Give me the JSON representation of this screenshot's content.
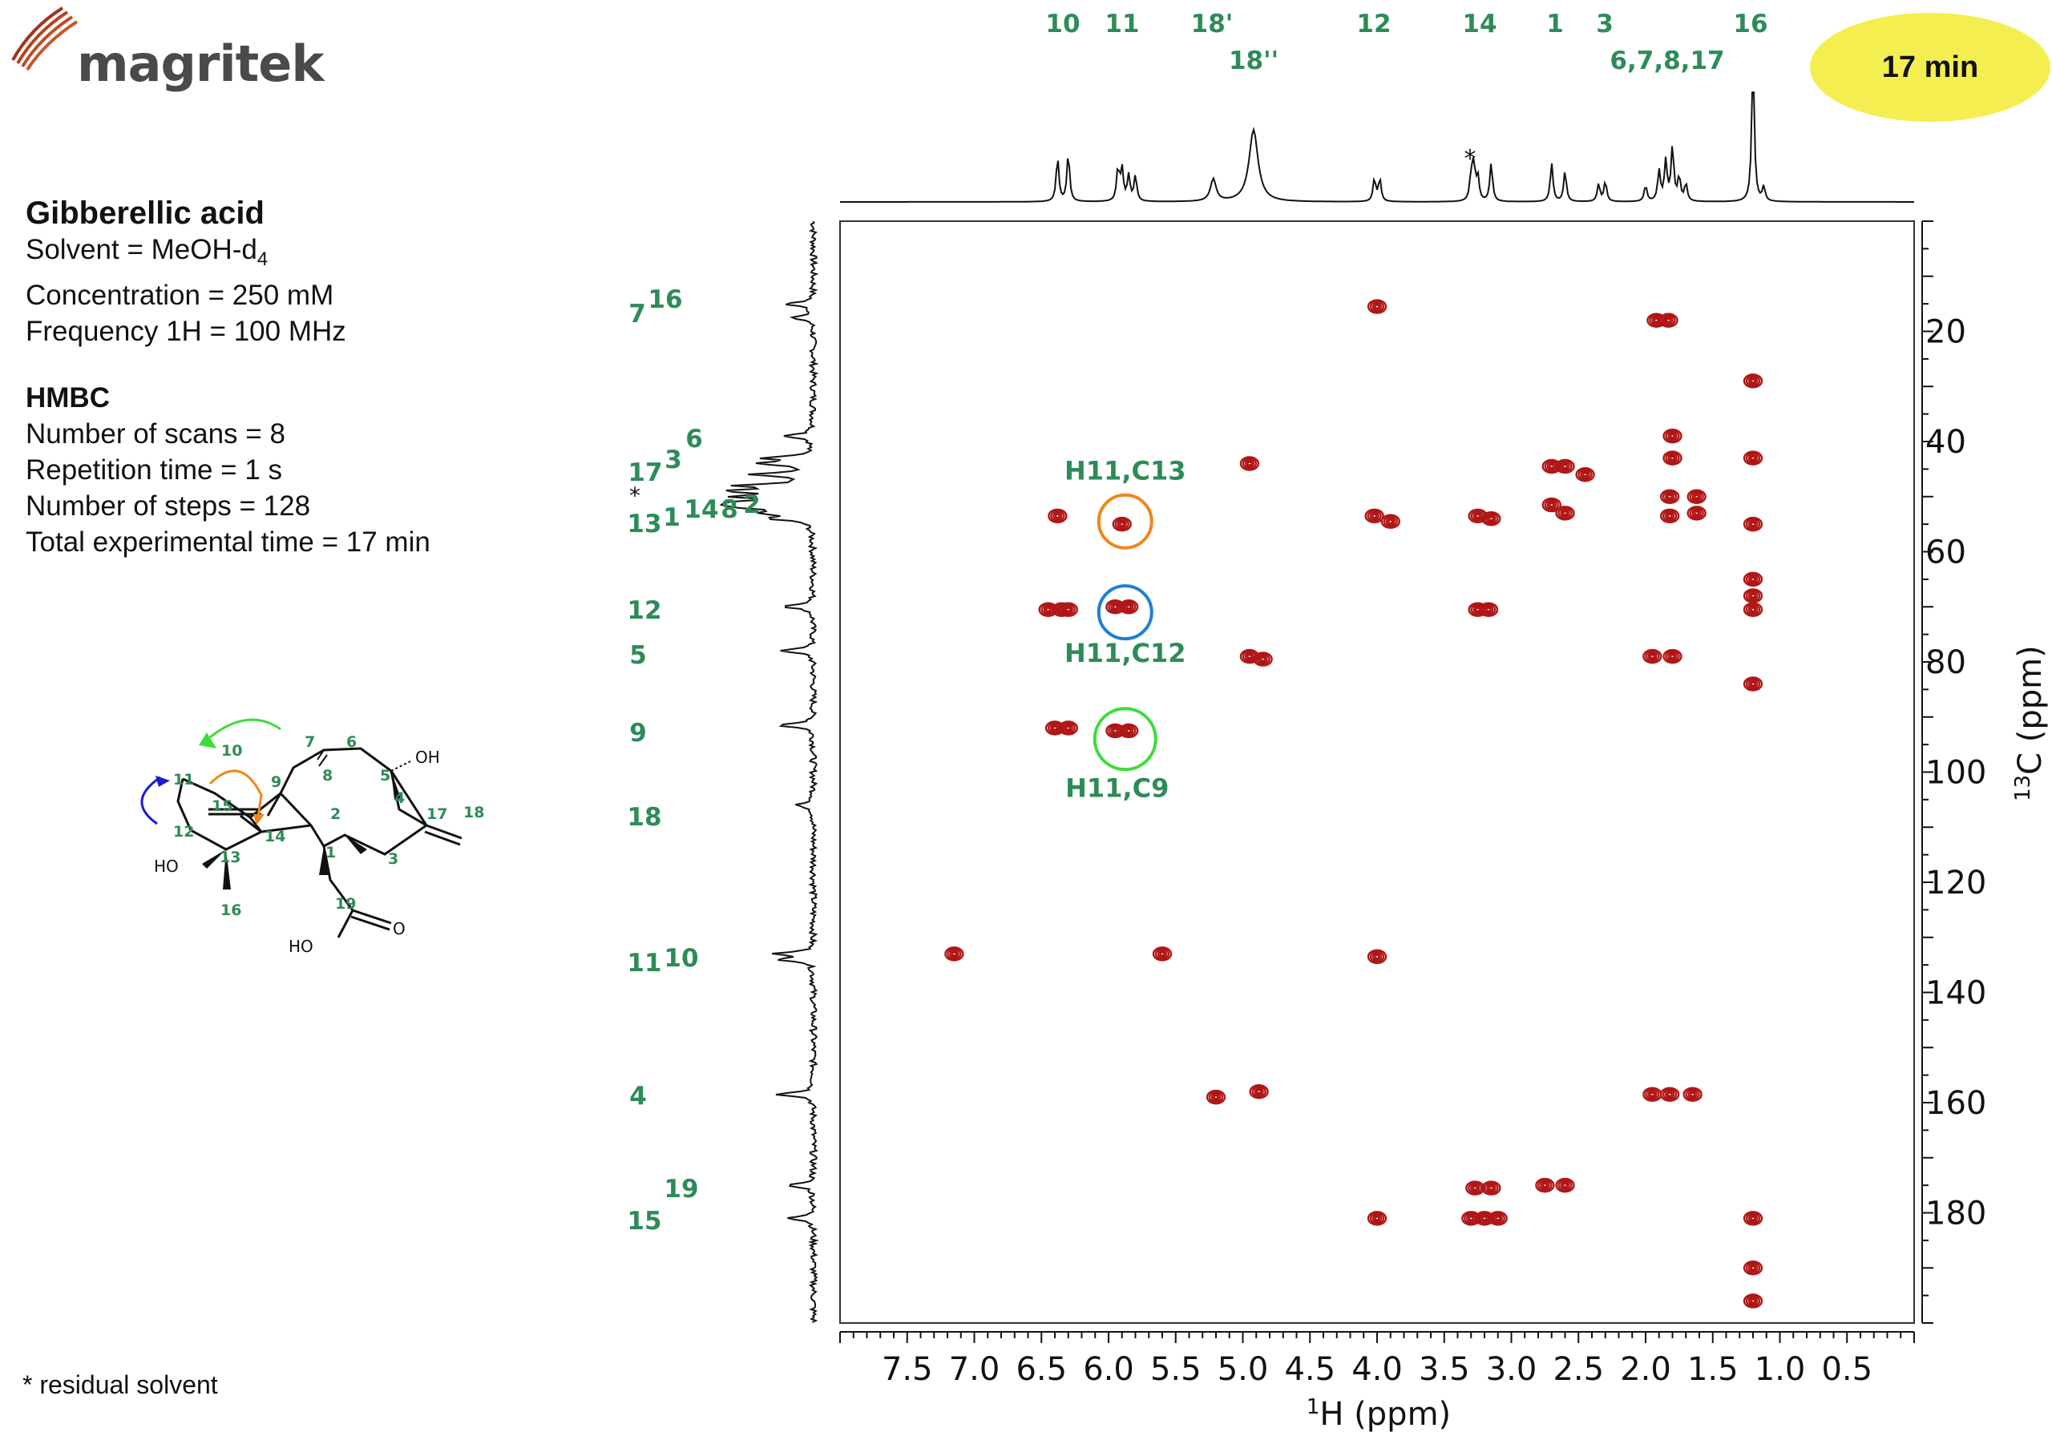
{
  "logo": {
    "text": "magritek"
  },
  "info": {
    "title": "Gibberellic acid",
    "solvent_prefix": "Solvent = MeOH-d",
    "solvent_sub": "4",
    "concentration": "Concentration = 250 mM",
    "frequency": "Frequency 1H = 100 MHz",
    "section": "HMBC",
    "scans": "Number of scans = 8",
    "repetition": "Repetition time = 1 s",
    "steps": "Number of steps = 128",
    "total_time": "Total experimental time =  17 min"
  },
  "footnote": "* residual solvent",
  "time_badge": "17 min",
  "structure_labels": {
    "oh": "OH",
    "ho1": "HO",
    "ho2": "HO",
    "o": "O"
  },
  "colors": {
    "contour": "#b01616",
    "label_green": "#2e8b57",
    "badge": "#f4ee50",
    "circle_orange": "#f0861c",
    "circle_blue": "#1e7fd6",
    "circle_green": "#3ddc3d",
    "arrow_blue": "#1a1ad6"
  },
  "chart_data": {
    "type": "heatmap",
    "subtype": "2D NMR HMBC contour",
    "xlabel_sup": "1",
    "xlabel": "H (ppm)",
    "ylabel_sup": "13",
    "ylabel": "C (ppm)",
    "xlim": [
      8.0,
      0.0
    ],
    "ylim": [
      0,
      200
    ],
    "x_ticks": [
      "7.5",
      "7.0",
      "6.5",
      "6.0",
      "5.5",
      "5.0",
      "4.5",
      "4.0",
      "3.5",
      "3.0",
      "2.5",
      "2.0",
      "1.5",
      "1.0",
      "0.5"
    ],
    "y_ticks": [
      "20",
      "40",
      "60",
      "80",
      "100",
      "120",
      "140",
      "160",
      "180"
    ],
    "h_assignments": [
      {
        "label": "10",
        "ppm": 6.35
      },
      {
        "label": "11",
        "ppm": 5.92
      },
      {
        "label": "18'",
        "ppm": 5.22
      },
      {
        "label": "18''",
        "ppm": 4.9
      },
      {
        "label": "12",
        "ppm": 4.0
      },
      {
        "label": "14",
        "ppm": 3.22
      },
      {
        "label": "1",
        "ppm": 2.65
      },
      {
        "label": "3",
        "ppm": 2.3
      },
      {
        "label": "6,7,8,17",
        "ppm": 1.75
      },
      {
        "label": "16",
        "ppm": 1.2
      }
    ],
    "c_assignments": [
      {
        "label": "7",
        "ppm": 17.5
      },
      {
        "label": "16",
        "ppm": 15.0
      },
      {
        "label": "6",
        "ppm": 39.0
      },
      {
        "label": "17",
        "ppm": 46.0
      },
      {
        "label": "3",
        "ppm": 44.0
      },
      {
        "label": "*",
        "ppm": 49.0
      },
      {
        "label": "13",
        "ppm": 54.0
      },
      {
        "label": "1",
        "ppm": 53.0
      },
      {
        "label": "14",
        "ppm": 51.5
      },
      {
        "label": "8",
        "ppm": 51.5
      },
      {
        "label": "2",
        "ppm": 51.0
      },
      {
        "label": "12",
        "ppm": 70.0
      },
      {
        "label": "5",
        "ppm": 78.0
      },
      {
        "label": "9",
        "ppm": 91.5
      },
      {
        "label": "18",
        "ppm": 106.0
      },
      {
        "label": "11",
        "ppm": 134.0
      },
      {
        "label": "10",
        "ppm": 133.0
      },
      {
        "label": "4",
        "ppm": 158.5
      },
      {
        "label": "19",
        "ppm": 175.0
      },
      {
        "label": "15",
        "ppm": 181.0
      }
    ],
    "annotations": [
      {
        "label": "H11,C13",
        "h": 5.9,
        "c": 54.5,
        "color": "orange"
      },
      {
        "label": "H11,C12",
        "h": 5.9,
        "c": 71.0,
        "color": "blue"
      },
      {
        "label": "H11,C9",
        "h": 5.9,
        "c": 94.0,
        "color": "green"
      }
    ],
    "cross_peaks": [
      {
        "h": 4.0,
        "c": 15.5
      },
      {
        "h": 1.92,
        "c": 18.0
      },
      {
        "h": 1.83,
        "c": 18.0
      },
      {
        "h": 1.2,
        "c": 29.0
      },
      {
        "h": 1.8,
        "c": 39.0
      },
      {
        "h": 1.8,
        "c": 43.0
      },
      {
        "h": 1.2,
        "c": 43.0
      },
      {
        "h": 4.95,
        "c": 44.0
      },
      {
        "h": 2.7,
        "c": 44.5
      },
      {
        "h": 2.6,
        "c": 44.5
      },
      {
        "h": 2.45,
        "c": 46.0
      },
      {
        "h": 1.82,
        "c": 50.0
      },
      {
        "h": 1.62,
        "c": 50.0
      },
      {
        "h": 1.62,
        "c": 53.0
      },
      {
        "h": 2.7,
        "c": 51.5
      },
      {
        "h": 2.6,
        "c": 53.0
      },
      {
        "h": 3.25,
        "c": 53.5
      },
      {
        "h": 3.15,
        "c": 54.0
      },
      {
        "h": 6.38,
        "c": 53.5
      },
      {
        "h": 5.9,
        "c": 55.0
      },
      {
        "h": 4.02,
        "c": 53.5
      },
      {
        "h": 3.9,
        "c": 54.5
      },
      {
        "h": 1.82,
        "c": 53.5
      },
      {
        "h": 1.2,
        "c": 55.0
      },
      {
        "h": 1.2,
        "c": 65.0
      },
      {
        "h": 1.2,
        "c": 68.0
      },
      {
        "h": 6.45,
        "c": 70.5
      },
      {
        "h": 6.35,
        "c": 70.5
      },
      {
        "h": 6.3,
        "c": 70.5
      },
      {
        "h": 5.95,
        "c": 70.0
      },
      {
        "h": 5.85,
        "c": 70.0
      },
      {
        "h": 3.25,
        "c": 70.5
      },
      {
        "h": 3.17,
        "c": 70.5
      },
      {
        "h": 1.2,
        "c": 70.5
      },
      {
        "h": 1.2,
        "c": 84.0
      },
      {
        "h": 4.95,
        "c": 79.0
      },
      {
        "h": 4.85,
        "c": 79.5
      },
      {
        "h": 1.95,
        "c": 79.0
      },
      {
        "h": 1.8,
        "c": 79.0
      },
      {
        "h": 6.4,
        "c": 92.0
      },
      {
        "h": 6.3,
        "c": 92.0
      },
      {
        "h": 5.95,
        "c": 92.5
      },
      {
        "h": 5.85,
        "c": 92.5
      },
      {
        "h": 7.15,
        "c": 133.0
      },
      {
        "h": 5.6,
        "c": 133.0
      },
      {
        "h": 4.0,
        "c": 133.5
      },
      {
        "h": 5.2,
        "c": 159.0
      },
      {
        "h": 4.88,
        "c": 158.0
      },
      {
        "h": 1.95,
        "c": 158.5
      },
      {
        "h": 1.82,
        "c": 158.5
      },
      {
        "h": 1.65,
        "c": 158.5
      },
      {
        "h": 3.27,
        "c": 175.5
      },
      {
        "h": 3.15,
        "c": 175.5
      },
      {
        "h": 2.75,
        "c": 175.0
      },
      {
        "h": 2.6,
        "c": 175.0
      },
      {
        "h": 4.0,
        "c": 181.0
      },
      {
        "h": 3.3,
        "c": 181.0
      },
      {
        "h": 3.2,
        "c": 181.0
      },
      {
        "h": 3.1,
        "c": 181.0
      },
      {
        "h": 1.2,
        "c": 181.0
      },
      {
        "h": 1.2,
        "c": 190.0
      },
      {
        "h": 1.2,
        "c": 196.0
      }
    ]
  }
}
